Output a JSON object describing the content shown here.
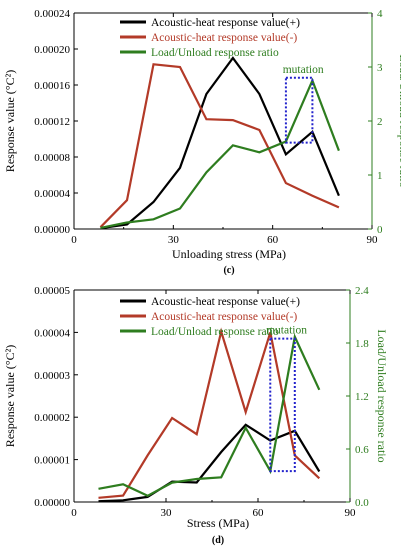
{
  "chart_data": [
    {
      "type": "line",
      "panel_label": "(c)",
      "xlabel": "Unloading stress (MPa)",
      "ylabel": "Response value (°C²)",
      "y2label": "Load/Unload response ratio",
      "xlim": [
        0,
        90
      ],
      "xticks": [
        "0",
        "30",
        "60",
        "90"
      ],
      "xtick_values": [
        0,
        30,
        60,
        90
      ],
      "ylim": [
        0,
        0.00024
      ],
      "yticks": [
        "0.00000",
        "0.00004",
        "0.00008",
        "0.00012",
        "0.00016",
        "0.00020",
        "0.00024"
      ],
      "ytick_values": [
        0,
        4e-05,
        8e-05,
        0.00012,
        0.00016,
        0.0002,
        0.00024
      ],
      "y2lim": [
        0,
        4
      ],
      "y2ticks": [
        "0",
        "1",
        "2",
        "3",
        "4"
      ],
      "y2tick_values": [
        0,
        1,
        2,
        3,
        4
      ],
      "legend_position": "top-center",
      "series": [
        {
          "name": "Acoustic-heat response value(+)",
          "axis": "left",
          "color": "#000000",
          "x": [
            8,
            16,
            24,
            32,
            40,
            48,
            56,
            64,
            72,
            80
          ],
          "y": [
            1e-06,
            5e-06,
            3e-05,
            6.8e-05,
            0.00015,
            0.00019,
            0.00015,
            8.3e-05,
            0.000108,
            3.7e-05
          ]
        },
        {
          "name": "Acoustic-heat response value(-)",
          "axis": "left",
          "color": "#b33a28",
          "x": [
            8,
            16,
            24,
            32,
            40,
            48,
            56,
            64,
            72,
            80
          ],
          "y": [
            2e-06,
            3.2e-05,
            0.000183,
            0.00018,
            0.000122,
            0.000121,
            0.00011,
            5.1e-05,
            3.7e-05,
            2.4e-05
          ]
        },
        {
          "name": "Load/Unload response ratio",
          "axis": "right",
          "color": "#2e7d1f",
          "x": [
            8,
            16,
            24,
            32,
            40,
            48,
            56,
            64,
            72,
            80
          ],
          "y": [
            0.02,
            0.12,
            0.18,
            0.38,
            1.05,
            1.55,
            1.42,
            1.62,
            2.75,
            1.45
          ]
        }
      ],
      "annotation": {
        "text": "mutation",
        "box_x": [
          64,
          72
        ],
        "box_y2": [
          1.6,
          2.8
        ],
        "color": "#2222cc"
      }
    },
    {
      "type": "line",
      "panel_label": "(d)",
      "xlabel": "Stress (MPa)",
      "ylabel": "Response value (°C²)",
      "y2label": "Load/Unload response ratio",
      "xlim": [
        0,
        90
      ],
      "xticks": [
        "0",
        "30",
        "60",
        "90"
      ],
      "xtick_values": [
        0,
        30,
        60,
        90
      ],
      "ylim": [
        0,
        5e-05
      ],
      "yticks": [
        "0.00000",
        "0.00001",
        "0.00002",
        "0.00003",
        "0.00004",
        "0.00005"
      ],
      "ytick_values": [
        0,
        1e-05,
        2e-05,
        3e-05,
        4e-05,
        5e-05
      ],
      "y2lim": [
        0,
        2.4
      ],
      "y2ticks": [
        "0.0",
        "0.6",
        "1.2",
        "1.8",
        "2.4"
      ],
      "y2tick_values": [
        0,
        0.6,
        1.2,
        1.8,
        2.4
      ],
      "legend_position": "top-center",
      "series": [
        {
          "name": "Acoustic-heat response value(+)",
          "axis": "left",
          "color": "#000000",
          "x": [
            8,
            16,
            24,
            32,
            40,
            48,
            56,
            64,
            72,
            80
          ],
          "y": [
            2e-07,
            4e-07,
            1.2e-06,
            4.8e-06,
            4.6e-06,
            1.18e-05,
            1.82e-05,
            1.45e-05,
            1.68e-05,
            7.2e-06
          ]
        },
        {
          "name": "Acoustic-heat response value(-)",
          "axis": "left",
          "color": "#b33a28",
          "x": [
            8,
            16,
            24,
            32,
            40,
            48,
            56,
            64,
            72,
            80
          ],
          "y": [
            1e-06,
            1.5e-06,
            1.1e-05,
            1.98e-05,
            1.6e-05,
            4.02e-05,
            2.12e-05,
            4e-05,
            1.1e-05,
            5.6e-06
          ]
        },
        {
          "name": "Load/Unload response ratio",
          "axis": "right",
          "color": "#2e7d1f",
          "x": [
            8,
            16,
            24,
            32,
            40,
            48,
            56,
            64,
            72,
            80
          ],
          "y": [
            0.15,
            0.2,
            0.07,
            0.22,
            0.26,
            0.28,
            0.84,
            0.35,
            1.87,
            1.27
          ]
        }
      ],
      "annotation": {
        "text": "mutation",
        "box_x": [
          64,
          72
        ],
        "box_y2": [
          0.35,
          1.85
        ],
        "color": "#2222cc"
      }
    }
  ]
}
